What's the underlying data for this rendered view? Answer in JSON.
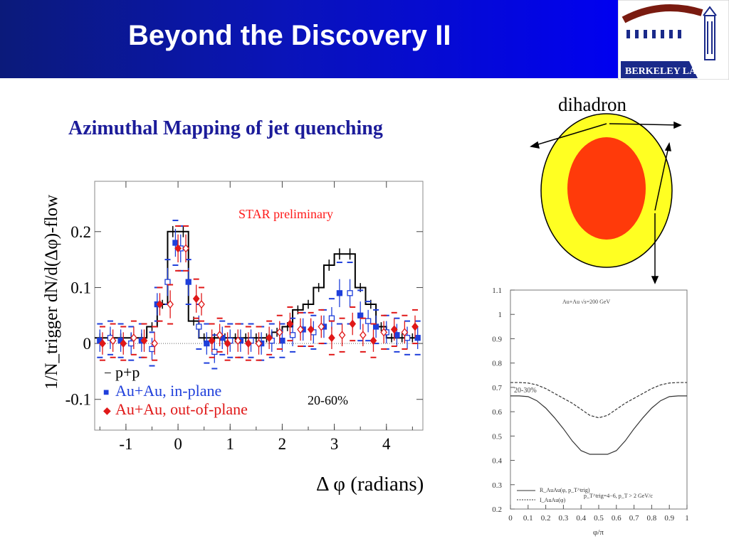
{
  "slide": {
    "title": "Beyond the Discovery II",
    "subtitle": "Azimuthal Mapping of jet quenching"
  },
  "logo": {
    "text": "BERKELEY LAB"
  },
  "colors": {
    "title_bar": "#0a14b8",
    "subtitle": "#1c1c9a",
    "pp": "#000000",
    "in_plane": "#1f3fdb",
    "out_of_plane": "#e01818",
    "outer_ellipse": "#ffff22",
    "inner_ellipse": "#ff3a0a"
  },
  "diagram": {
    "label": "dihadron"
  },
  "chart_data": [
    {
      "type": "line",
      "ylabel": "1/N_trigger dN/d(Δφ)-flow",
      "xlabel": "Δ φ (radians)",
      "xlim": [
        -1.6,
        4.7
      ],
      "ylim": [
        -0.155,
        0.29
      ],
      "x_ticks": [
        -1,
        0,
        1,
        2,
        3,
        4
      ],
      "y_ticks": [
        -0.1,
        0,
        0.1,
        0.2
      ],
      "y_tick_labels": [
        "-0.1",
        "0",
        "0.1",
        "0.2"
      ],
      "annotations": {
        "preliminary": "STAR preliminary",
        "centrality": "20-60%"
      },
      "legend": [
        {
          "marker": "−",
          "label": "p+p"
        },
        {
          "marker": "■",
          "label": "Au+Au, in-plane"
        },
        {
          "marker": "◆",
          "label": "Au+Au, out-of-plane"
        }
      ],
      "grid": false,
      "series": [
        {
          "name": "p+p",
          "style": "step",
          "x": [
            -1.5,
            -1.3,
            -1.1,
            -0.9,
            -0.7,
            -0.5,
            -0.3,
            -0.1,
            0.1,
            0.3,
            0.5,
            0.7,
            0.9,
            1.1,
            1.3,
            1.5,
            1.7,
            1.9,
            2.1,
            2.3,
            2.5,
            2.7,
            2.9,
            3.1,
            3.3,
            3.5,
            3.7,
            3.9,
            4.1,
            4.3,
            4.5
          ],
          "y": [
            0.01,
            0.01,
            0.01,
            0.01,
            0.01,
            0.03,
            0.07,
            0.2,
            0.2,
            0.04,
            0.01,
            0.01,
            0.01,
            0.01,
            0.01,
            0.01,
            0.01,
            0.02,
            0.03,
            0.06,
            0.07,
            0.1,
            0.14,
            0.16,
            0.16,
            0.1,
            0.07,
            0.03,
            0.01,
            0.01,
            0.01
          ],
          "errors": [
            0.008,
            0.008,
            0.008,
            0.008,
            0.008,
            0.008,
            0.008,
            0.01,
            0.01,
            0.008,
            0.008,
            0.008,
            0.008,
            0.008,
            0.008,
            0.008,
            0.008,
            0.008,
            0.008,
            0.008,
            0.008,
            0.008,
            0.01,
            0.01,
            0.01,
            0.008,
            0.008,
            0.008,
            0.008,
            0.008,
            0.008
          ]
        },
        {
          "name": "Au+Au, in-plane",
          "style": "points",
          "marker": "square",
          "x": [
            -1.5,
            -1.3,
            -1.1,
            -0.9,
            -0.7,
            -0.5,
            -0.4,
            -0.2,
            -0.05,
            0.05,
            0.2,
            0.4,
            0.55,
            0.7,
            0.85,
            1.0,
            1.2,
            1.4,
            1.6,
            1.8,
            2.0,
            2.2,
            2.4,
            2.6,
            2.8,
            2.95,
            3.1,
            3.3,
            3.5,
            3.65,
            3.8,
            4.0,
            4.2,
            4.4,
            4.6
          ],
          "y": [
            0.005,
            0.01,
            0.005,
            0.0,
            0.005,
            -0.01,
            0.07,
            0.11,
            0.18,
            0.17,
            0.11,
            0.03,
            0.0,
            -0.015,
            0.01,
            0.005,
            0.005,
            0.005,
            0.0,
            0.005,
            0.005,
            0.015,
            0.025,
            0.02,
            0.03,
            0.045,
            0.09,
            0.09,
            0.05,
            0.04,
            0.03,
            0.02,
            0.015,
            0.01,
            0.01
          ],
          "errors": [
            0.02,
            0.02,
            0.02,
            0.02,
            0.02,
            0.02,
            0.02,
            0.025,
            0.025,
            0.025,
            0.025,
            0.02,
            0.02,
            0.02,
            0.02,
            0.02,
            0.02,
            0.02,
            0.02,
            0.02,
            0.02,
            0.02,
            0.02,
            0.02,
            0.02,
            0.02,
            0.025,
            0.025,
            0.025,
            0.02,
            0.02,
            0.02,
            0.02,
            0.02,
            0.02
          ],
          "sys": [
            0.03,
            0.03,
            0.03,
            0.03,
            0.03,
            0.03,
            0.03,
            0.04,
            0.04,
            0.04,
            0.04,
            0.04,
            0.035,
            0.03,
            0.03,
            0.03,
            0.03,
            0.03,
            0.03,
            0.03,
            0.03,
            0.03,
            0.03,
            0.03,
            0.03,
            0.035,
            0.055,
            0.055,
            0.045,
            0.035,
            0.03,
            0.03,
            0.03,
            0.03,
            0.03
          ]
        },
        {
          "name": "Au+Au, out-of-plane",
          "style": "points",
          "marker": "diamond",
          "x": [
            -1.45,
            -1.25,
            -1.05,
            -0.85,
            -0.65,
            -0.45,
            -0.35,
            -0.15,
            0.0,
            0.15,
            0.35,
            0.45,
            0.65,
            0.8,
            0.95,
            1.15,
            1.35,
            1.55,
            1.75,
            1.95,
            2.15,
            2.35,
            2.55,
            2.75,
            2.95,
            3.15,
            3.35,
            3.55,
            3.75,
            3.95,
            4.15,
            4.35,
            4.55
          ],
          "y": [
            0.0,
            0.005,
            0.0,
            0.01,
            0.005,
            0.0,
            0.07,
            0.07,
            0.17,
            0.17,
            0.08,
            0.07,
            0.005,
            0.015,
            0.0,
            0.005,
            0.0,
            0.0,
            0.01,
            0.02,
            0.035,
            0.025,
            0.025,
            0.03,
            0.01,
            0.015,
            0.035,
            0.015,
            0.005,
            0.02,
            0.025,
            0.02,
            0.03
          ],
          "errors": [
            0.02,
            0.02,
            0.02,
            0.02,
            0.02,
            0.02,
            0.02,
            0.025,
            0.025,
            0.025,
            0.025,
            0.02,
            0.02,
            0.02,
            0.02,
            0.02,
            0.02,
            0.02,
            0.02,
            0.02,
            0.02,
            0.02,
            0.02,
            0.02,
            0.02,
            0.02,
            0.02,
            0.02,
            0.02,
            0.02,
            0.02,
            0.02,
            0.02
          ],
          "sys": [
            0.03,
            0.03,
            0.03,
            0.03,
            0.03,
            0.03,
            0.03,
            0.035,
            0.04,
            0.04,
            0.035,
            0.03,
            0.03,
            0.03,
            0.03,
            0.03,
            0.03,
            0.03,
            0.03,
            0.03,
            0.03,
            0.03,
            0.03,
            0.03,
            0.03,
            0.03,
            0.03,
            0.03,
            0.03,
            0.03,
            0.03,
            0.03,
            0.03
          ]
        }
      ]
    },
    {
      "type": "line",
      "xlabel": "φ/π",
      "xlim": [
        0,
        1
      ],
      "ylim": [
        0.2,
        1.1
      ],
      "x_ticks": [
        0,
        0.1,
        0.2,
        0.3,
        0.4,
        0.5,
        0.6,
        0.7,
        0.8,
        0.9,
        1
      ],
      "x_tick_labels": [
        "0",
        "0.1",
        "0.2",
        "0.3",
        "0.4",
        "0.5",
        "0.6",
        "0.7",
        "0.8",
        "0.9",
        "1"
      ],
      "y_ticks": [
        0.2,
        0.3,
        0.4,
        0.5,
        0.6,
        0.7,
        0.8,
        0.9,
        1,
        1.1
      ],
      "y_tick_labels": [
        "0.2",
        "0.3",
        "0.4",
        "0.5",
        "0.6",
        "0.7",
        "0.8",
        "0.9",
        "1",
        "1.1"
      ],
      "annotations": {
        "system": "Au+Au √s=200 GeV",
        "centrality": "20-30%",
        "cuts": "p_T^trig=4−6, p_T > 2 GeV/c"
      },
      "legend": [
        {
          "style": "solid",
          "label": "R_AuAu(φ, p_T^trig)"
        },
        {
          "style": "dashed",
          "label": "I_AuAu(φ)"
        }
      ],
      "grid": false,
      "series": [
        {
          "style": "solid",
          "x": [
            0,
            0.05,
            0.1,
            0.15,
            0.2,
            0.25,
            0.3,
            0.35,
            0.4,
            0.45,
            0.5,
            0.55,
            0.6,
            0.65,
            0.7,
            0.75,
            0.8,
            0.85,
            0.9,
            0.95,
            1
          ],
          "y": [
            0.665,
            0.665,
            0.662,
            0.645,
            0.615,
            0.575,
            0.53,
            0.48,
            0.44,
            0.425,
            0.425,
            0.425,
            0.44,
            0.48,
            0.53,
            0.575,
            0.615,
            0.645,
            0.662,
            0.665,
            0.665
          ]
        },
        {
          "style": "dashed",
          "x": [
            0,
            0.05,
            0.1,
            0.15,
            0.2,
            0.25,
            0.3,
            0.35,
            0.4,
            0.45,
            0.5,
            0.55,
            0.6,
            0.65,
            0.7,
            0.75,
            0.8,
            0.85,
            0.9,
            0.95,
            1
          ],
          "y": [
            0.72,
            0.72,
            0.718,
            0.71,
            0.695,
            0.675,
            0.655,
            0.635,
            0.61,
            0.585,
            0.575,
            0.585,
            0.61,
            0.635,
            0.655,
            0.675,
            0.695,
            0.71,
            0.718,
            0.72,
            0.72
          ]
        }
      ]
    }
  ]
}
